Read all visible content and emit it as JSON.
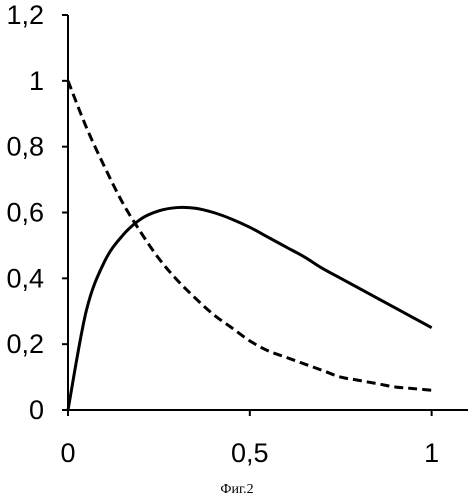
{
  "chart_data": {
    "type": "line",
    "title": "",
    "xlabel": "",
    "ylabel": "",
    "xlim": [
      0,
      1.1
    ],
    "ylim": [
      0,
      1.2
    ],
    "x_ticks": [
      {
        "value": 0,
        "label": "0"
      },
      {
        "value": 0.5,
        "label": "0,5"
      },
      {
        "value": 1,
        "label": "1"
      }
    ],
    "y_ticks": [
      {
        "value": 0,
        "label": "0"
      },
      {
        "value": 0.2,
        "label": "0,2"
      },
      {
        "value": 0.4,
        "label": "0,4"
      },
      {
        "value": 0.6,
        "label": "0,6"
      },
      {
        "value": 0.8,
        "label": "0,8"
      },
      {
        "value": 1,
        "label": "1"
      },
      {
        "value": 1.2,
        "label": "1,2"
      }
    ],
    "grid": false,
    "legend": "none",
    "series": [
      {
        "style": "solid",
        "color": "#000000",
        "x": [
          0,
          0.05,
          0.1,
          0.15,
          0.2,
          0.25,
          0.3,
          0.35,
          0.4,
          0.45,
          0.5,
          0.55,
          0.6,
          0.65,
          0.7,
          0.75,
          0.8,
          0.85,
          0.9,
          0.95,
          1.0
        ],
        "y": [
          0,
          0.3,
          0.45,
          0.53,
          0.58,
          0.605,
          0.615,
          0.613,
          0.6,
          0.58,
          0.555,
          0.525,
          0.495,
          0.465,
          0.43,
          0.4,
          0.37,
          0.34,
          0.31,
          0.28,
          0.25
        ]
      },
      {
        "style": "dash-dot",
        "color": "#000000",
        "x": [
          0,
          0.05,
          0.1,
          0.15,
          0.2,
          0.25,
          0.3,
          0.35,
          0.4,
          0.45,
          0.5,
          0.55,
          0.6,
          0.65,
          0.7,
          0.75,
          0.8,
          0.85,
          0.9,
          0.95,
          1.0
        ],
        "y": [
          1.0,
          0.86,
          0.74,
          0.63,
          0.54,
          0.46,
          0.395,
          0.34,
          0.29,
          0.25,
          0.21,
          0.18,
          0.16,
          0.14,
          0.12,
          0.1,
          0.09,
          0.08,
          0.07,
          0.065,
          0.06
        ]
      }
    ]
  },
  "caption": "Фиг.2"
}
